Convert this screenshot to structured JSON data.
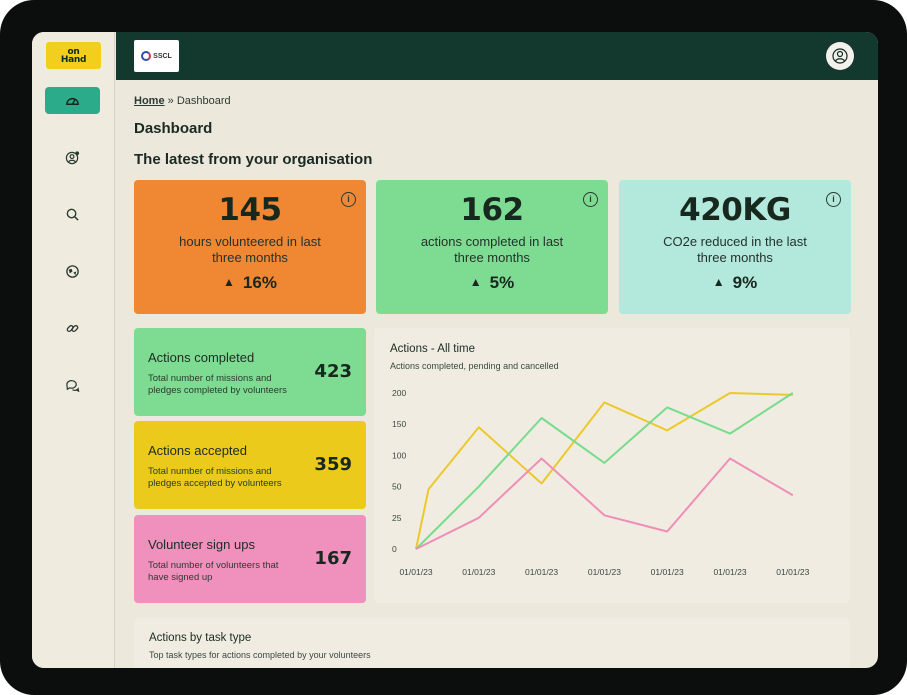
{
  "app": {
    "logo_line1": "on",
    "logo_line2": "Hand",
    "org_name": "SSCL"
  },
  "sidebar": {
    "items": [
      {
        "icon": "dashboard-icon"
      },
      {
        "icon": "user-settings-icon"
      },
      {
        "icon": "search-icon"
      },
      {
        "icon": "globe-icon"
      },
      {
        "icon": "link-icon"
      },
      {
        "icon": "chat-icon"
      }
    ]
  },
  "breadcrumb": {
    "home": "Home",
    "separator": "»",
    "current": "Dashboard"
  },
  "page": {
    "title": "Dashboard",
    "section_title": "The latest from your organisation"
  },
  "stats": [
    {
      "value": "145",
      "description": "hours volunteered in last three months",
      "change": "16%",
      "color": "#f08833"
    },
    {
      "value": "162",
      "description": "actions completed in last three months",
      "change": "5%",
      "color": "#7edc92"
    },
    {
      "value": "420KG",
      "description": "CO2e reduced in the last three months",
      "change": "9%",
      "color": "#b3e8dc"
    }
  ],
  "metrics": [
    {
      "title": "Actions completed",
      "description": "Total number of missions and pledges completed by volunteers",
      "value": "423",
      "color": "#7edc92"
    },
    {
      "title": "Actions accepted",
      "description": "Total number of missions and pledges accepted by volunteers",
      "value": "359",
      "color": "#ecca1c"
    },
    {
      "title": "Volunteer sign ups",
      "description": "Total number of volunteers that have signed up",
      "value": "167",
      "color": "#f091bd"
    }
  ],
  "chart_data": {
    "type": "line",
    "title": "Actions - All time",
    "subtitle": "Actions completed, pending and cancelled",
    "x": [
      "01/01/23",
      "01/01/23",
      "01/01/23",
      "01/01/23",
      "01/01/23",
      "01/01/23",
      "01/01/23"
    ],
    "yticks": [
      "0",
      "25",
      "50",
      "100",
      "150",
      "200"
    ],
    "series": [
      {
        "color": "#ecc92a",
        "points": [
          [
            0,
            0
          ],
          [
            0.2,
            48
          ],
          [
            1,
            145
          ],
          [
            2,
            55
          ],
          [
            3,
            185
          ],
          [
            4,
            140
          ],
          [
            5,
            215
          ],
          [
            6,
            197
          ]
        ]
      },
      {
        "color": "#78dc8c",
        "points": [
          [
            0,
            0
          ],
          [
            1,
            50
          ],
          [
            2,
            160
          ],
          [
            3,
            88
          ],
          [
            4,
            177
          ],
          [
            5,
            135
          ],
          [
            6,
            213
          ]
        ]
      },
      {
        "color": "#ef8eb8",
        "points": [
          [
            0,
            0
          ],
          [
            1,
            25
          ],
          [
            2,
            95
          ],
          [
            3,
            27
          ],
          [
            4,
            14
          ],
          [
            5,
            95
          ],
          [
            6,
            43
          ]
        ]
      }
    ]
  },
  "task_section": {
    "title": "Actions by task type",
    "subtitle": "Top task types for actions completed by your volunteers"
  }
}
